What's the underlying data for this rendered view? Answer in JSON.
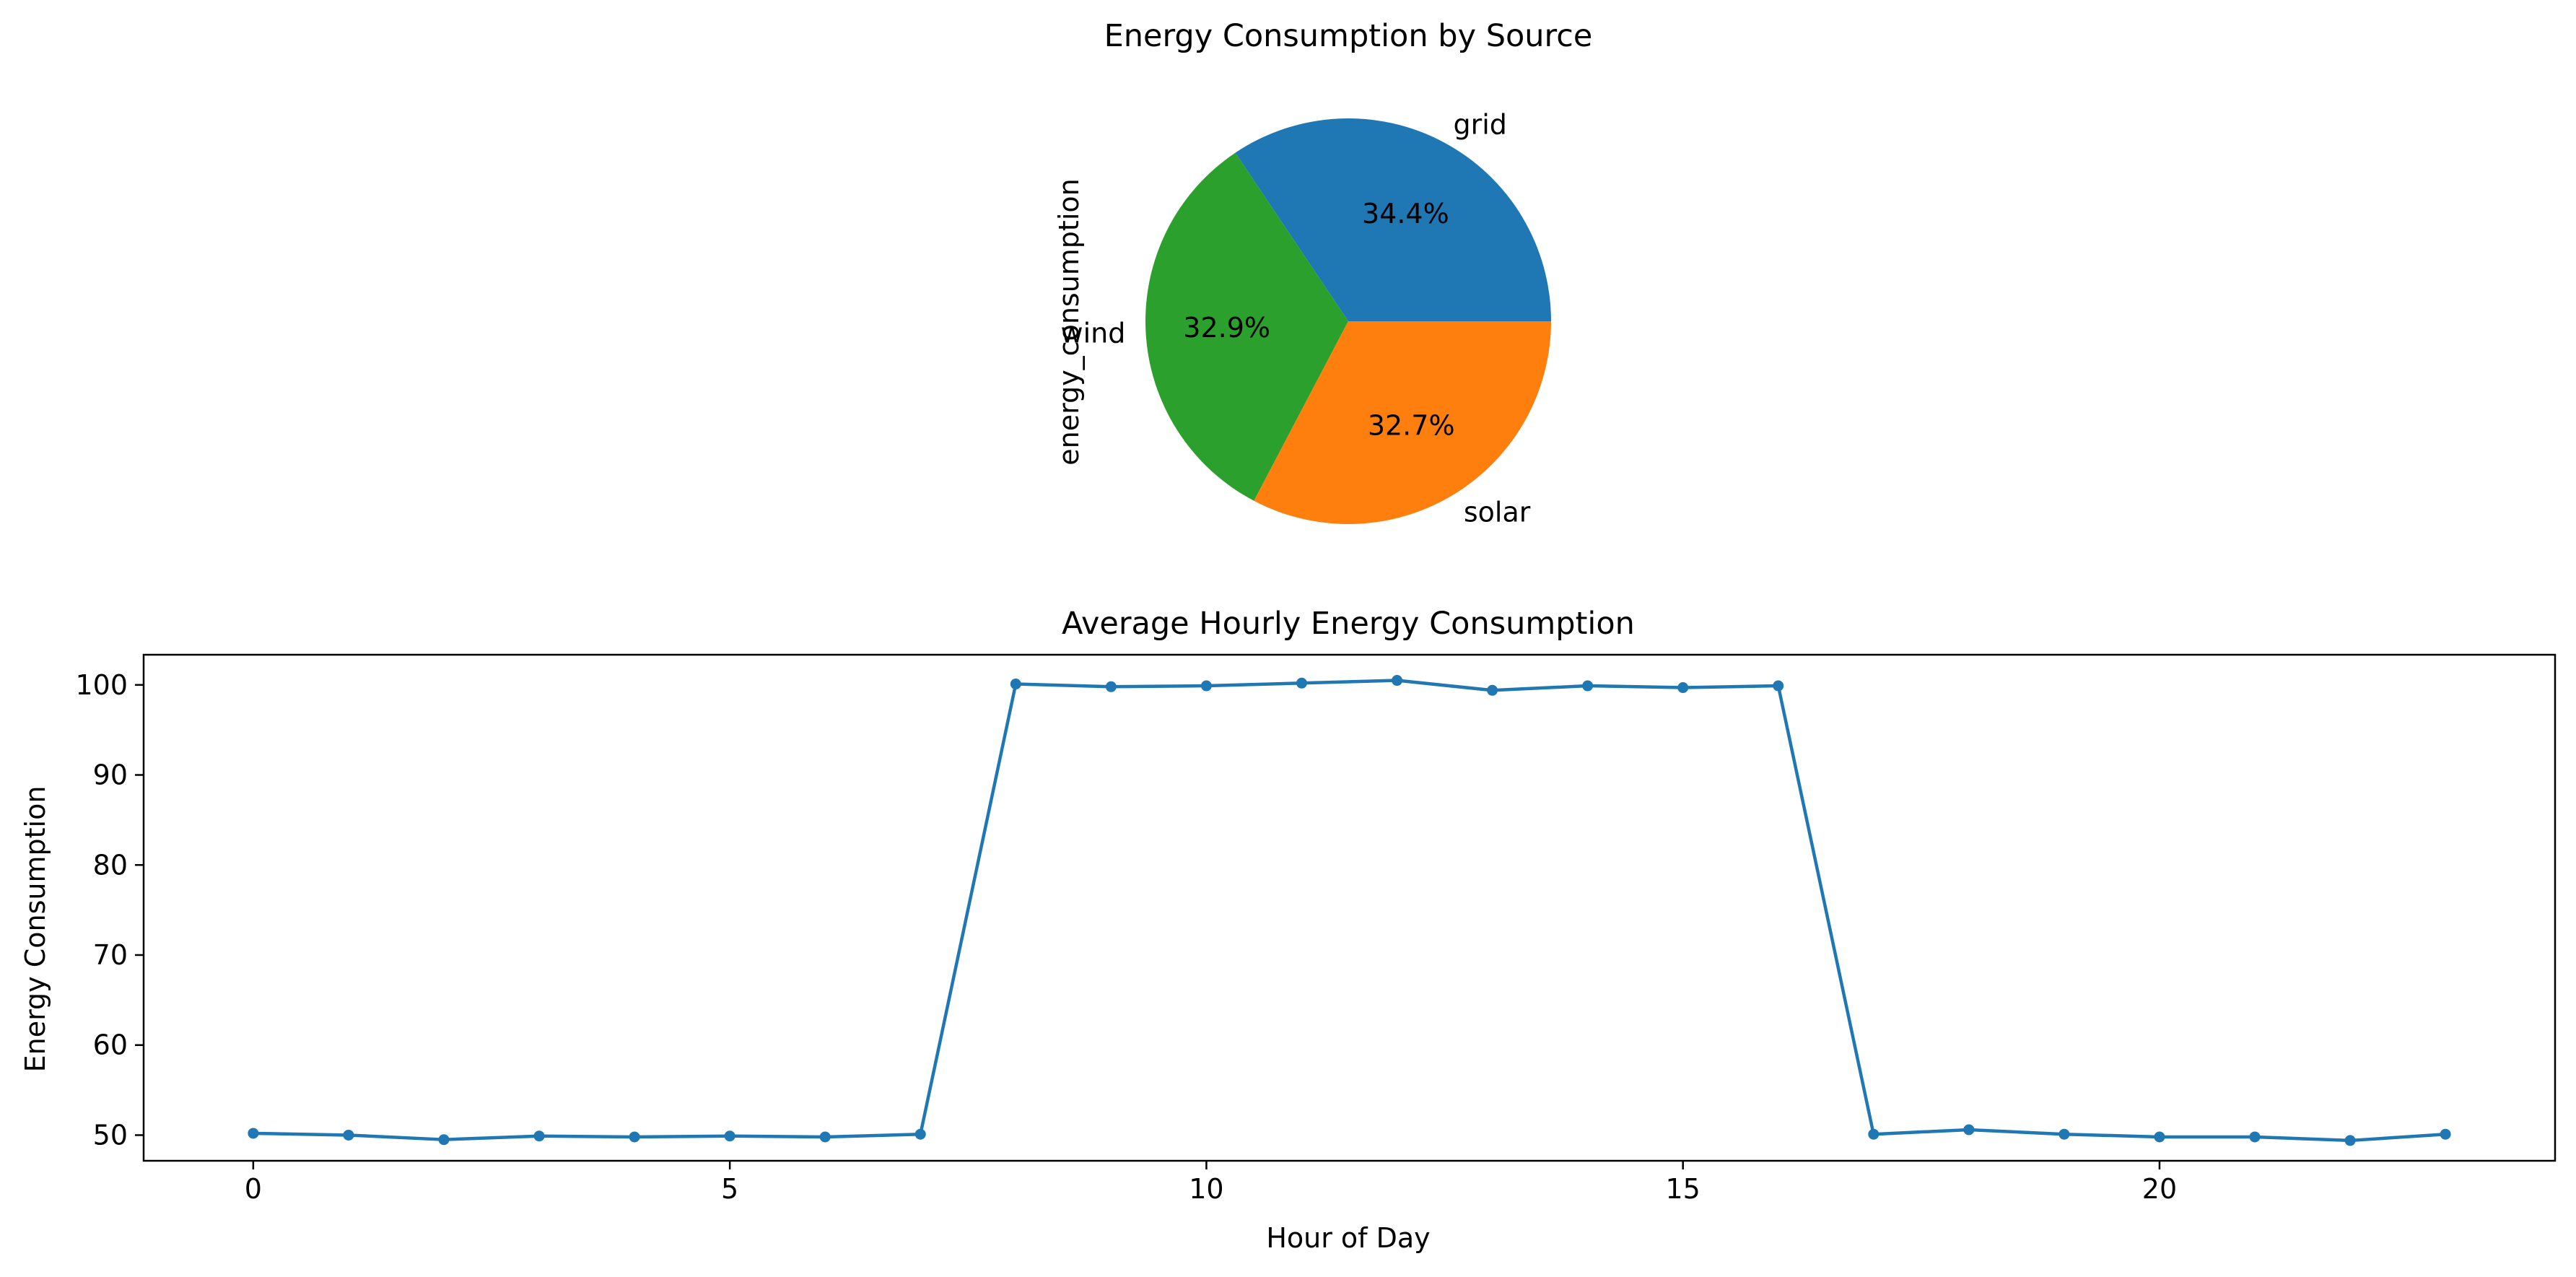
{
  "chart_data": [
    {
      "type": "pie",
      "title": "Energy Consumption by Source",
      "ylabel": "energy_consumption",
      "categories": [
        "grid",
        "wind",
        "solar"
      ],
      "values": [
        34.4,
        32.9,
        32.7
      ],
      "percent_labels": [
        "34.4%",
        "32.9%",
        "32.7%"
      ],
      "colors": [
        "#1f77b4",
        "#2ca02c",
        "#ff7f0e"
      ],
      "start_angle": 0,
      "direction": "counterclockwise",
      "legend": "none"
    },
    {
      "type": "line",
      "title": "Average Hourly Energy Consumption",
      "xlabel": "Hour of Day",
      "ylabel": "Energy Consumption",
      "x": [
        0,
        1,
        2,
        3,
        4,
        5,
        6,
        7,
        8,
        9,
        10,
        11,
        12,
        13,
        14,
        15,
        16,
        17,
        18,
        19,
        20,
        21,
        22,
        23
      ],
      "series": [
        {
          "values": [
            50.2,
            50.0,
            49.5,
            49.9,
            49.8,
            49.9,
            49.8,
            50.1,
            100.1,
            99.8,
            99.9,
            100.2,
            100.5,
            99.4,
            99.9,
            99.7,
            99.9,
            50.1,
            50.6,
            50.1,
            49.8,
            49.8,
            49.4,
            50.1
          ],
          "color": "#1f77b4",
          "marker": "circle"
        }
      ],
      "xlim": [
        -1.15,
        24.15
      ],
      "ylim": [
        47.15,
        103.35
      ],
      "xticks": [
        0,
        5,
        10,
        15,
        20
      ],
      "yticks": [
        50,
        60,
        70,
        80,
        90,
        100
      ],
      "grid": false,
      "legend": "none"
    }
  ]
}
